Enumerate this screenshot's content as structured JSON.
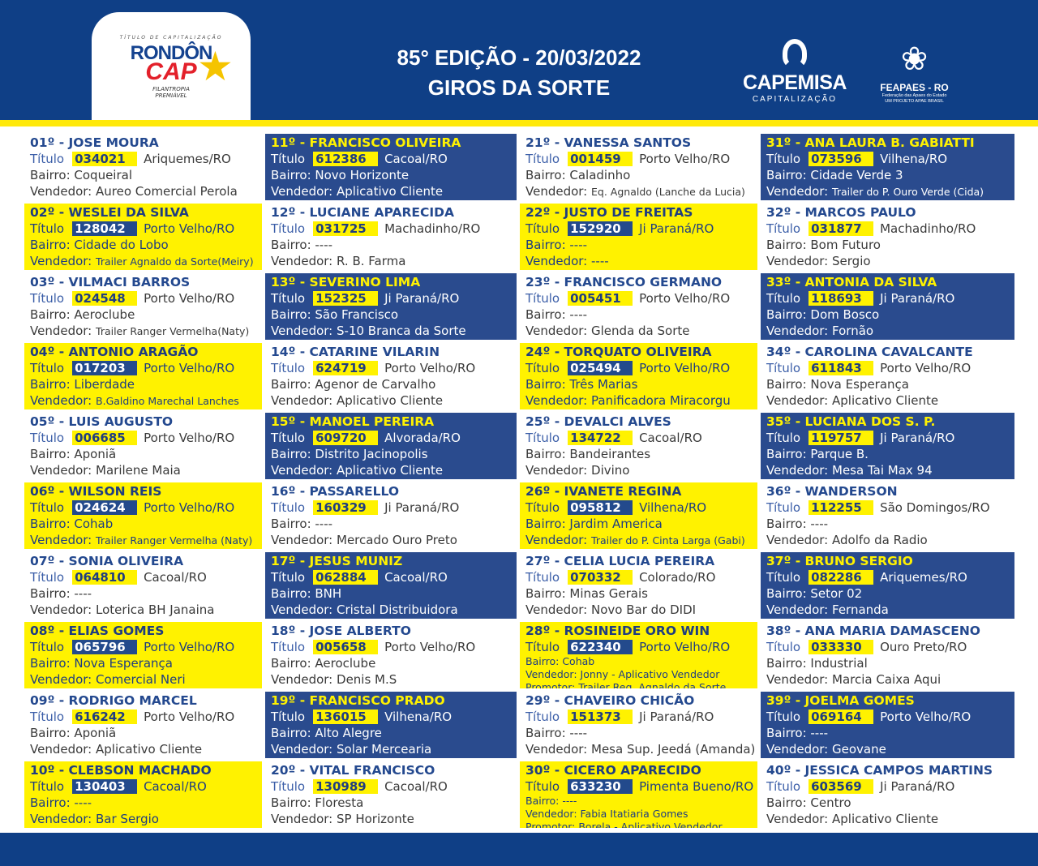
{
  "header": {
    "edition": "85° EDIÇÃO - 20/03/2022",
    "subtitle": "GIROS DA SORTE"
  },
  "logos": {
    "rondon": {
      "tagline": "TÍTULO DE CAPITALIZAÇÃO",
      "name1": "RONDÔN",
      "name2": "CAP",
      "sub1": "FILANTROPIA",
      "sub2": "PREMIÁVEL"
    },
    "capemisa": {
      "name": "CAPEMISA",
      "sub": "CAPITALIZAÇÃO"
    },
    "feapaes": {
      "name": "FEAPAES - RO",
      "sub1": "Federação das Apaes do Estado",
      "sub2": "UM PROJETO APAE BRASIL"
    }
  },
  "labels": {
    "titulo": "Título",
    "bairro": "Bairro: ",
    "vendedor": "Vendedor: ",
    "promotor": "Promotor: "
  },
  "colors": {
    "blue": "#0f3f86",
    "cell_blue": "#2a4b8e",
    "yellow": "#fff200"
  },
  "winners": [
    {
      "rank": "01º - JOSE MOURA",
      "titulo": "034021",
      "city": "Ariquemes/RO",
      "bairro": "Coqueiral",
      "vendedor": "Aureo Comercial Perola",
      "style": "white"
    },
    {
      "rank": "02º - WESLEI DA SILVA",
      "titulo": "128042",
      "city": "Porto Velho/RO",
      "bairro": "Cidade do Lobo",
      "vendedor": "Trailer Agnaldo da Sorte(Meiry)",
      "style": "yellow"
    },
    {
      "rank": "03º - VILMACI BARROS",
      "titulo": "024548",
      "city": "Porto Velho/RO",
      "bairro": "Aeroclube",
      "vendedor": "Trailer Ranger Vermelha(Naty)",
      "style": "white"
    },
    {
      "rank": "04º - ANTONIO ARAGÃO",
      "titulo": "017203",
      "city": "Porto Velho/RO",
      "bairro": "Liberdade",
      "vendedor": "B.Galdino Marechal Lanches",
      "style": "yellow"
    },
    {
      "rank": "05º - LUIS AUGUSTO",
      "titulo": "006685",
      "city": "Porto Velho/RO",
      "bairro": "Aponiã",
      "vendedor": "Marilene Maia",
      "style": "white"
    },
    {
      "rank": "06º - WILSON REIS",
      "titulo": "024624",
      "city": "Porto Velho/RO",
      "bairro": "Cohab",
      "vendedor": "Trailer Ranger Vermelha (Naty)",
      "style": "yellow"
    },
    {
      "rank": "07º - SONIA OLIVEIRA",
      "titulo": "064810",
      "city": "Cacoal/RO",
      "bairro": "----",
      "vendedor": "Loterica BH Janaina",
      "style": "white"
    },
    {
      "rank": "08º - ELIAS GOMES",
      "titulo": "065796",
      "city": "Porto Velho/RO",
      "bairro": "Nova Esperança",
      "vendedor": "Comercial Neri",
      "style": "yellow"
    },
    {
      "rank": "09º - RODRIGO MARCEL",
      "titulo": "616242",
      "city": "Porto Velho/RO",
      "bairro": "Aponiã",
      "vendedor": "Aplicativo Cliente",
      "style": "white"
    },
    {
      "rank": "10º - CLEBSON MACHADO",
      "titulo": "130403",
      "city": "Cacoal/RO",
      "bairro": "----",
      "vendedor": "Bar Sergio",
      "style": "yellow"
    },
    {
      "rank": "11º -  FRANCISCO OLIVEIRA",
      "titulo": "612386",
      "city": "Cacoal/RO",
      "bairro": "Novo Horizonte",
      "vendedor": "Aplicativo Cliente",
      "style": "blue"
    },
    {
      "rank": "12º - LUCIANE APARECIDA",
      "titulo": "031725",
      "city": "Machadinho/RO",
      "bairro": "----",
      "vendedor": "R. B. Farma",
      "style": "white"
    },
    {
      "rank": "13º - SEVERINO LIMA",
      "titulo": "152325",
      "city": "Ji Paraná/RO",
      "bairro": "São Francisco",
      "vendedor": "S-10 Branca da Sorte",
      "style": "blue"
    },
    {
      "rank": "14º - CATARINE VILARIN",
      "titulo": "624719",
      "city": "Porto Velho/RO",
      "bairro": "Agenor de Carvalho",
      "vendedor": "Aplicativo Cliente",
      "style": "white"
    },
    {
      "rank": "15º - MANOEL PEREIRA",
      "titulo": "609720",
      "city": "Alvorada/RO",
      "bairro": "Distrito Jacinopolis",
      "vendedor": "Aplicativo Cliente",
      "style": "blue"
    },
    {
      "rank": "16º - PASSARELLO",
      "titulo": "160329",
      "city": "Ji Paraná/RO",
      "bairro": "----",
      "vendedor": "Mercado Ouro Preto",
      "style": "white"
    },
    {
      "rank": "17º - JESUS MUNIZ",
      "titulo": "062884",
      "city": "Cacoal/RO",
      "bairro": "BNH",
      "vendedor": "Cristal Distribuidora",
      "style": "blue"
    },
    {
      "rank": "18º - JOSE ALBERTO",
      "titulo": "005658",
      "city": "Porto Velho/RO",
      "bairro": "Aeroclube",
      "vendedor": "Denis M.S",
      "style": "white"
    },
    {
      "rank": "19º - FRANCISCO PRADO",
      "titulo": "136015",
      "city": "Vilhena/RO",
      "bairro": "Alto Alegre",
      "vendedor": "Solar Mercearia",
      "style": "blue"
    },
    {
      "rank": "20º - VITAL FRANCISCO",
      "titulo": "130989",
      "city": "Cacoal/RO",
      "bairro": "Floresta",
      "vendedor": "SP Horizonte",
      "style": "white"
    },
    {
      "rank": "21º -  VANESSA SANTOS",
      "titulo": "001459",
      "city": "Porto Velho/RO",
      "bairro": "Caladinho",
      "vendedor": "Eq. Agnaldo (Lanche da Lucia)",
      "style": "white"
    },
    {
      "rank": "22º - JUSTO DE FREITAS",
      "titulo": "152920",
      "city": "Ji Paraná/RO",
      "bairro": "----",
      "vendedor": "----",
      "style": "yellow"
    },
    {
      "rank": "23º - FRANCISCO GERMANO",
      "titulo": "005451",
      "city": "Porto Velho/RO",
      "bairro": "----",
      "vendedor": "Glenda da Sorte",
      "style": "white"
    },
    {
      "rank": "24º - TORQUATO OLIVEIRA",
      "titulo": "025494",
      "city": "Porto Velho/RO",
      "bairro": "Três Marias",
      "vendedor": "Panificadora Miracorgu",
      "style": "yellow"
    },
    {
      "rank": "25º -  DEVALCI ALVES",
      "titulo": "134722",
      "city": "Cacoal/RO",
      "bairro": "Bandeirantes",
      "vendedor": "Divino",
      "style": "white"
    },
    {
      "rank": "26º - IVANETE REGINA",
      "titulo": "095812",
      "city": "Vilhena/RO",
      "bairro": "Jardim America",
      "vendedor": "Trailer do P. Cinta Larga (Gabi)",
      "style": "yellow"
    },
    {
      "rank": "27º - CELIA LUCIA PEREIRA",
      "titulo": "070332",
      "city": "Colorado/RO",
      "bairro": "Minas Gerais",
      "vendedor": "Novo Bar do DIDI",
      "style": "white"
    },
    {
      "rank": "28º - ROSINEIDE ORO WIN",
      "titulo": "622340",
      "city": "Porto Velho/RO",
      "bairro": "Cohab",
      "vendedor": "Jonny - Aplicativo Vendedor",
      "promotor": "Trailer Reg. Agnaldo da Sorte",
      "style": "yellow"
    },
    {
      "rank": "29º - CHAVEIRO CHICÃO",
      "titulo": "151373",
      "city": "Ji Paraná/RO",
      "bairro": "----",
      "vendedor": "Mesa Sup. Jeedá (Amanda)",
      "style": "white"
    },
    {
      "rank": "30º - CICERO APARECIDO",
      "titulo": "633230",
      "city": "Pimenta Bueno/RO",
      "bairro": "----",
      "vendedor": "Fabia Itatiaria Gomes",
      "promotor": "Borela - Aplicativo Vendedor",
      "style": "yellow"
    },
    {
      "rank": "31º - ANA LAURA B. GABIATTI",
      "titulo": "073596",
      "city": "Vilhena/RO",
      "bairro": "Cidade Verde 3",
      "vendedor": "Trailer do P. Ouro Verde (Cida)",
      "style": "blue"
    },
    {
      "rank": "32º - MARCOS PAULO",
      "titulo": "031877",
      "city": "Machadinho/RO",
      "bairro": "Bom Futuro",
      "vendedor": "Sergio",
      "style": "white"
    },
    {
      "rank": "33º - ANTONIA DA SILVA",
      "titulo": "118693",
      "city": "Ji Paraná/RO",
      "bairro": "Dom Bosco",
      "vendedor": "Fornão",
      "style": "blue"
    },
    {
      "rank": "34º - CAROLINA CAVALCANTE",
      "titulo": "611843",
      "city": "Porto Velho/RO",
      "bairro": "Nova Esperança",
      "vendedor": "Aplicativo Cliente",
      "style": "white"
    },
    {
      "rank": "35º - LUCIANA DOS S. P.",
      "titulo": "119757",
      "city": "Ji Paraná/RO",
      "bairro": "Parque B.",
      "vendedor": "Mesa Tai Max 94",
      "style": "blue"
    },
    {
      "rank": "36º - WANDERSON",
      "titulo": "112255",
      "city": "São Domingos/RO",
      "bairro": "----",
      "vendedor": "Adolfo da Radio",
      "style": "white"
    },
    {
      "rank": "37º - BRUNO SERGIO",
      "titulo": "082286",
      "city": "Ariquemes/RO",
      "bairro": "Setor 02",
      "vendedor": "Fernanda",
      "style": "blue"
    },
    {
      "rank": "38º - ANA MARIA DAMASCENO",
      "titulo": "033330",
      "city": "Ouro Preto/RO",
      "bairro": "Industrial",
      "vendedor": "Marcia Caixa Aqui",
      "style": "white"
    },
    {
      "rank": "39º - JOELMA GOMES",
      "titulo": "069164",
      "city": "Porto Velho/RO",
      "bairro": "----",
      "vendedor": "Geovane",
      "style": "blue"
    },
    {
      "rank": "40º - JESSICA CAMPOS MARTINS",
      "titulo": "603569",
      "city": "Ji Paraná/RO",
      "bairro": "Centro",
      "vendedor": "Aplicativo Cliente",
      "style": "white"
    }
  ]
}
